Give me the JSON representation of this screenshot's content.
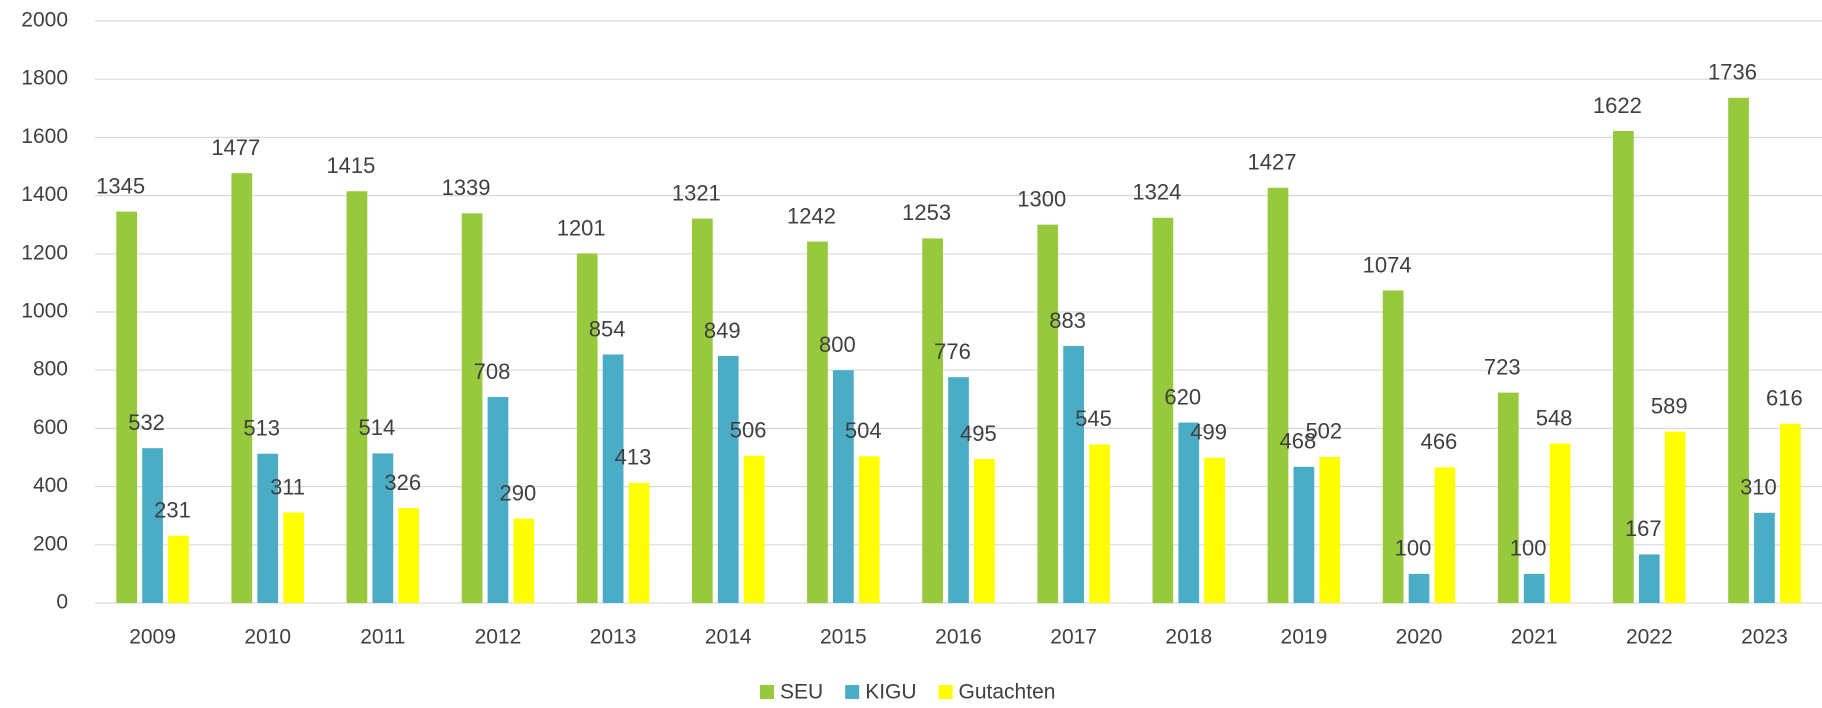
{
  "chart_data": {
    "type": "bar",
    "categories": [
      "2009",
      "2010",
      "2011",
      "2012",
      "2013",
      "2014",
      "2015",
      "2016",
      "2017",
      "2018",
      "2019",
      "2020",
      "2021",
      "2022",
      "2023"
    ],
    "series": [
      {
        "name": "SEU",
        "color": "#97c93d",
        "values": [
          1345,
          1477,
          1415,
          1339,
          1201,
          1321,
          1242,
          1253,
          1300,
          1324,
          1427,
          1074,
          723,
          1622,
          1736
        ]
      },
      {
        "name": "KIGU",
        "color": "#4bacc6",
        "values": [
          532,
          513,
          514,
          708,
          854,
          849,
          800,
          776,
          883,
          620,
          468,
          100,
          100,
          167,
          310
        ]
      },
      {
        "name": "Gutachten",
        "color": "#ffff00",
        "values": [
          231,
          311,
          326,
          290,
          413,
          506,
          504,
          495,
          545,
          499,
          502,
          466,
          548,
          589,
          616
        ]
      }
    ],
    "ylim": [
      0,
      2000
    ],
    "yticks": [
      0,
      200,
      400,
      600,
      800,
      1000,
      1200,
      1400,
      1600,
      1800,
      2000
    ],
    "grid": true,
    "legend": "bottom"
  }
}
